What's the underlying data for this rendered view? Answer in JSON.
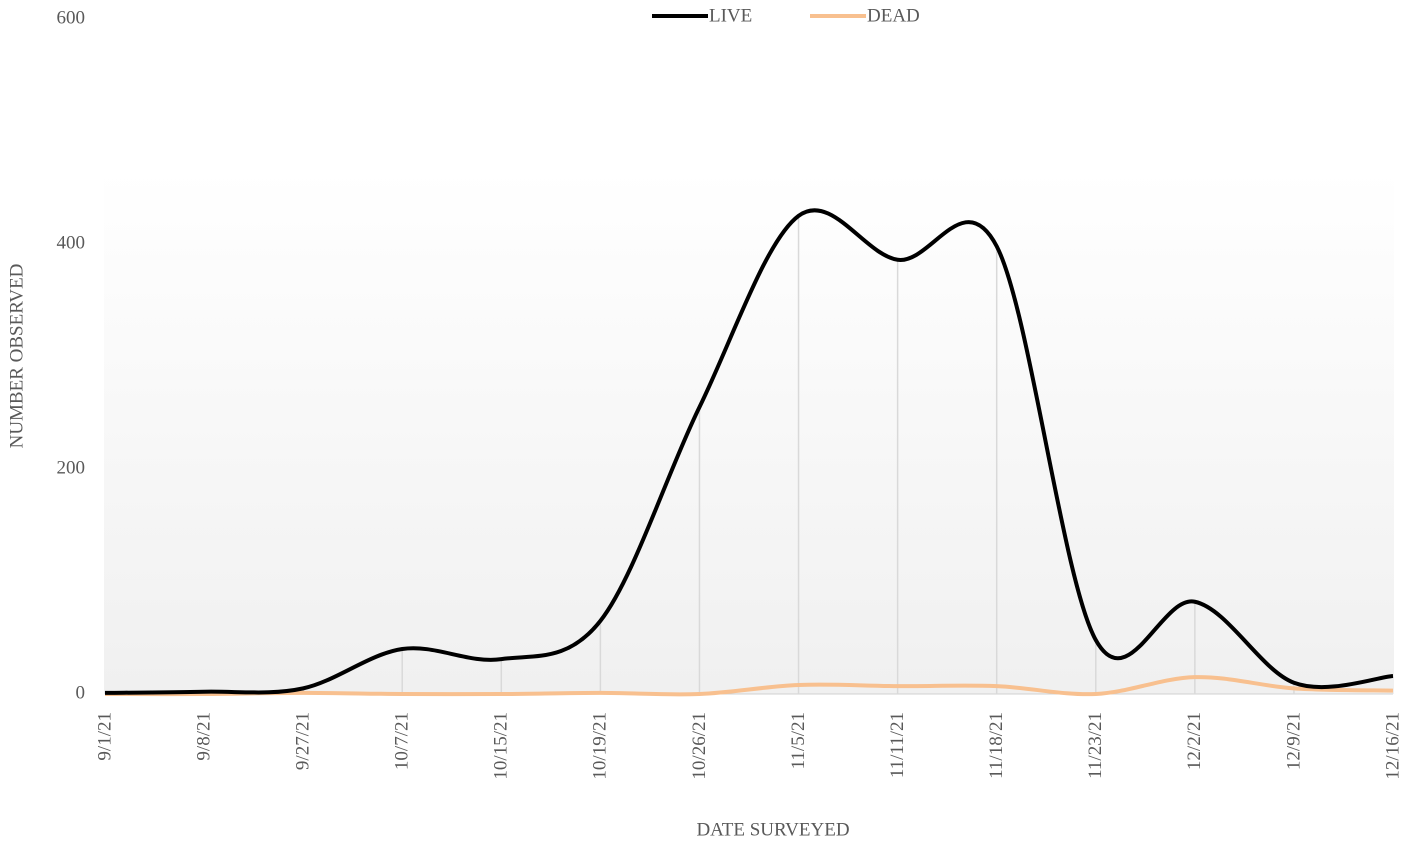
{
  "chart_data": {
    "type": "line",
    "x_label": "DATE SURVEYED",
    "y_label": "NUMBER OBSERVED",
    "categories": [
      "9/1/21",
      "9/8/21",
      "9/27/21",
      "10/7/21",
      "10/15/21",
      "10/19/21",
      "10/26/21",
      "11/5/21",
      "11/11/21",
      "11/18/21",
      "11/23/21",
      "12/2/21",
      "12/9/21",
      "12/16/21"
    ],
    "series": [
      {
        "name": "LIVE",
        "color": "#000000",
        "values": [
          1,
          2,
          5,
          40,
          31,
          65,
          255,
          425,
          386,
          398,
          48,
          82,
          10,
          16
        ]
      },
      {
        "name": "DEAD",
        "color": "#f8c08f",
        "values": [
          0,
          0,
          1,
          0,
          0,
          1,
          0,
          8,
          7,
          7,
          0,
          15,
          5,
          3
        ]
      }
    ],
    "ylim": [
      0,
      600
    ],
    "yticks": [
      0,
      200,
      400,
      600
    ],
    "legend": "top",
    "smooth": true,
    "drop_lines": true
  }
}
